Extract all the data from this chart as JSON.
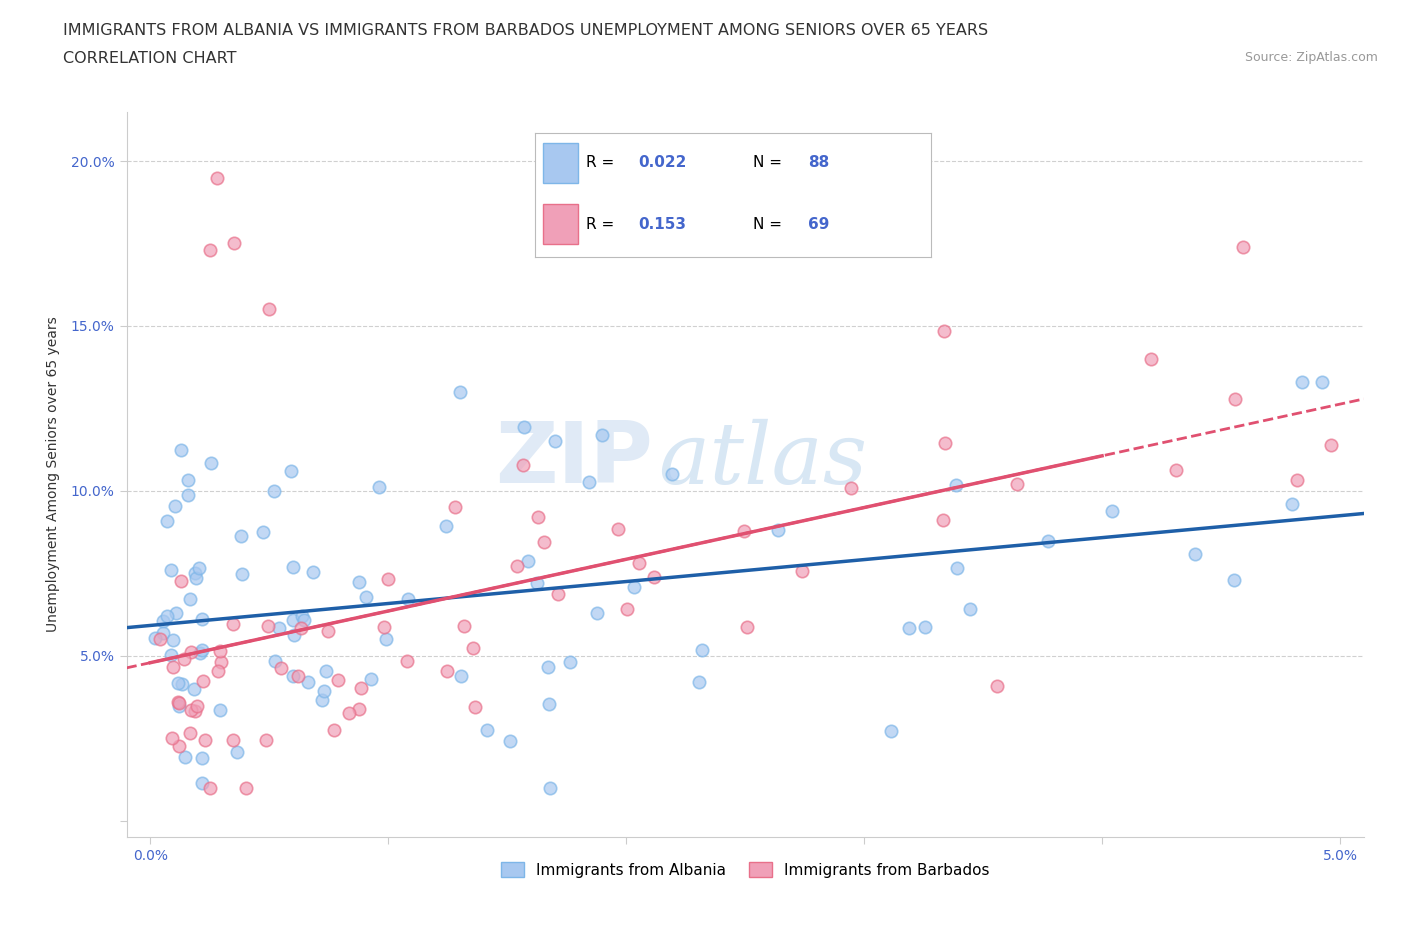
{
  "title_line1": "IMMIGRANTS FROM ALBANIA VS IMMIGRANTS FROM BARBADOS UNEMPLOYMENT AMONG SENIORS OVER 65 YEARS",
  "title_line2": "CORRELATION CHART",
  "source_text": "Source: ZipAtlas.com",
  "ylabel": "Unemployment Among Seniors over 65 years",
  "xlim": [
    -0.001,
    0.051
  ],
  "ylim": [
    -0.005,
    0.215
  ],
  "albania_color": "#A8C8F0",
  "barbados_color": "#F0A0B8",
  "albania_edge_color": "#7EB6E8",
  "barbados_edge_color": "#E8708A",
  "albania_line_color": "#1E5FA8",
  "barbados_line_color": "#E05070",
  "legend_label_albania": "Immigrants from Albania",
  "legend_label_barbados": "Immigrants from Barbados",
  "R_albania": "0.022",
  "N_albania": "88",
  "R_barbados": "0.153",
  "N_barbados": "69",
  "watermark_zip": "ZIP",
  "watermark_atlas": "atlas",
  "background_color": "#ffffff",
  "grid_color": "#d0d0d0",
  "title_fontsize": 11.5,
  "axis_label_fontsize": 10,
  "tick_fontsize": 10,
  "tick_color": "#4466CC"
}
